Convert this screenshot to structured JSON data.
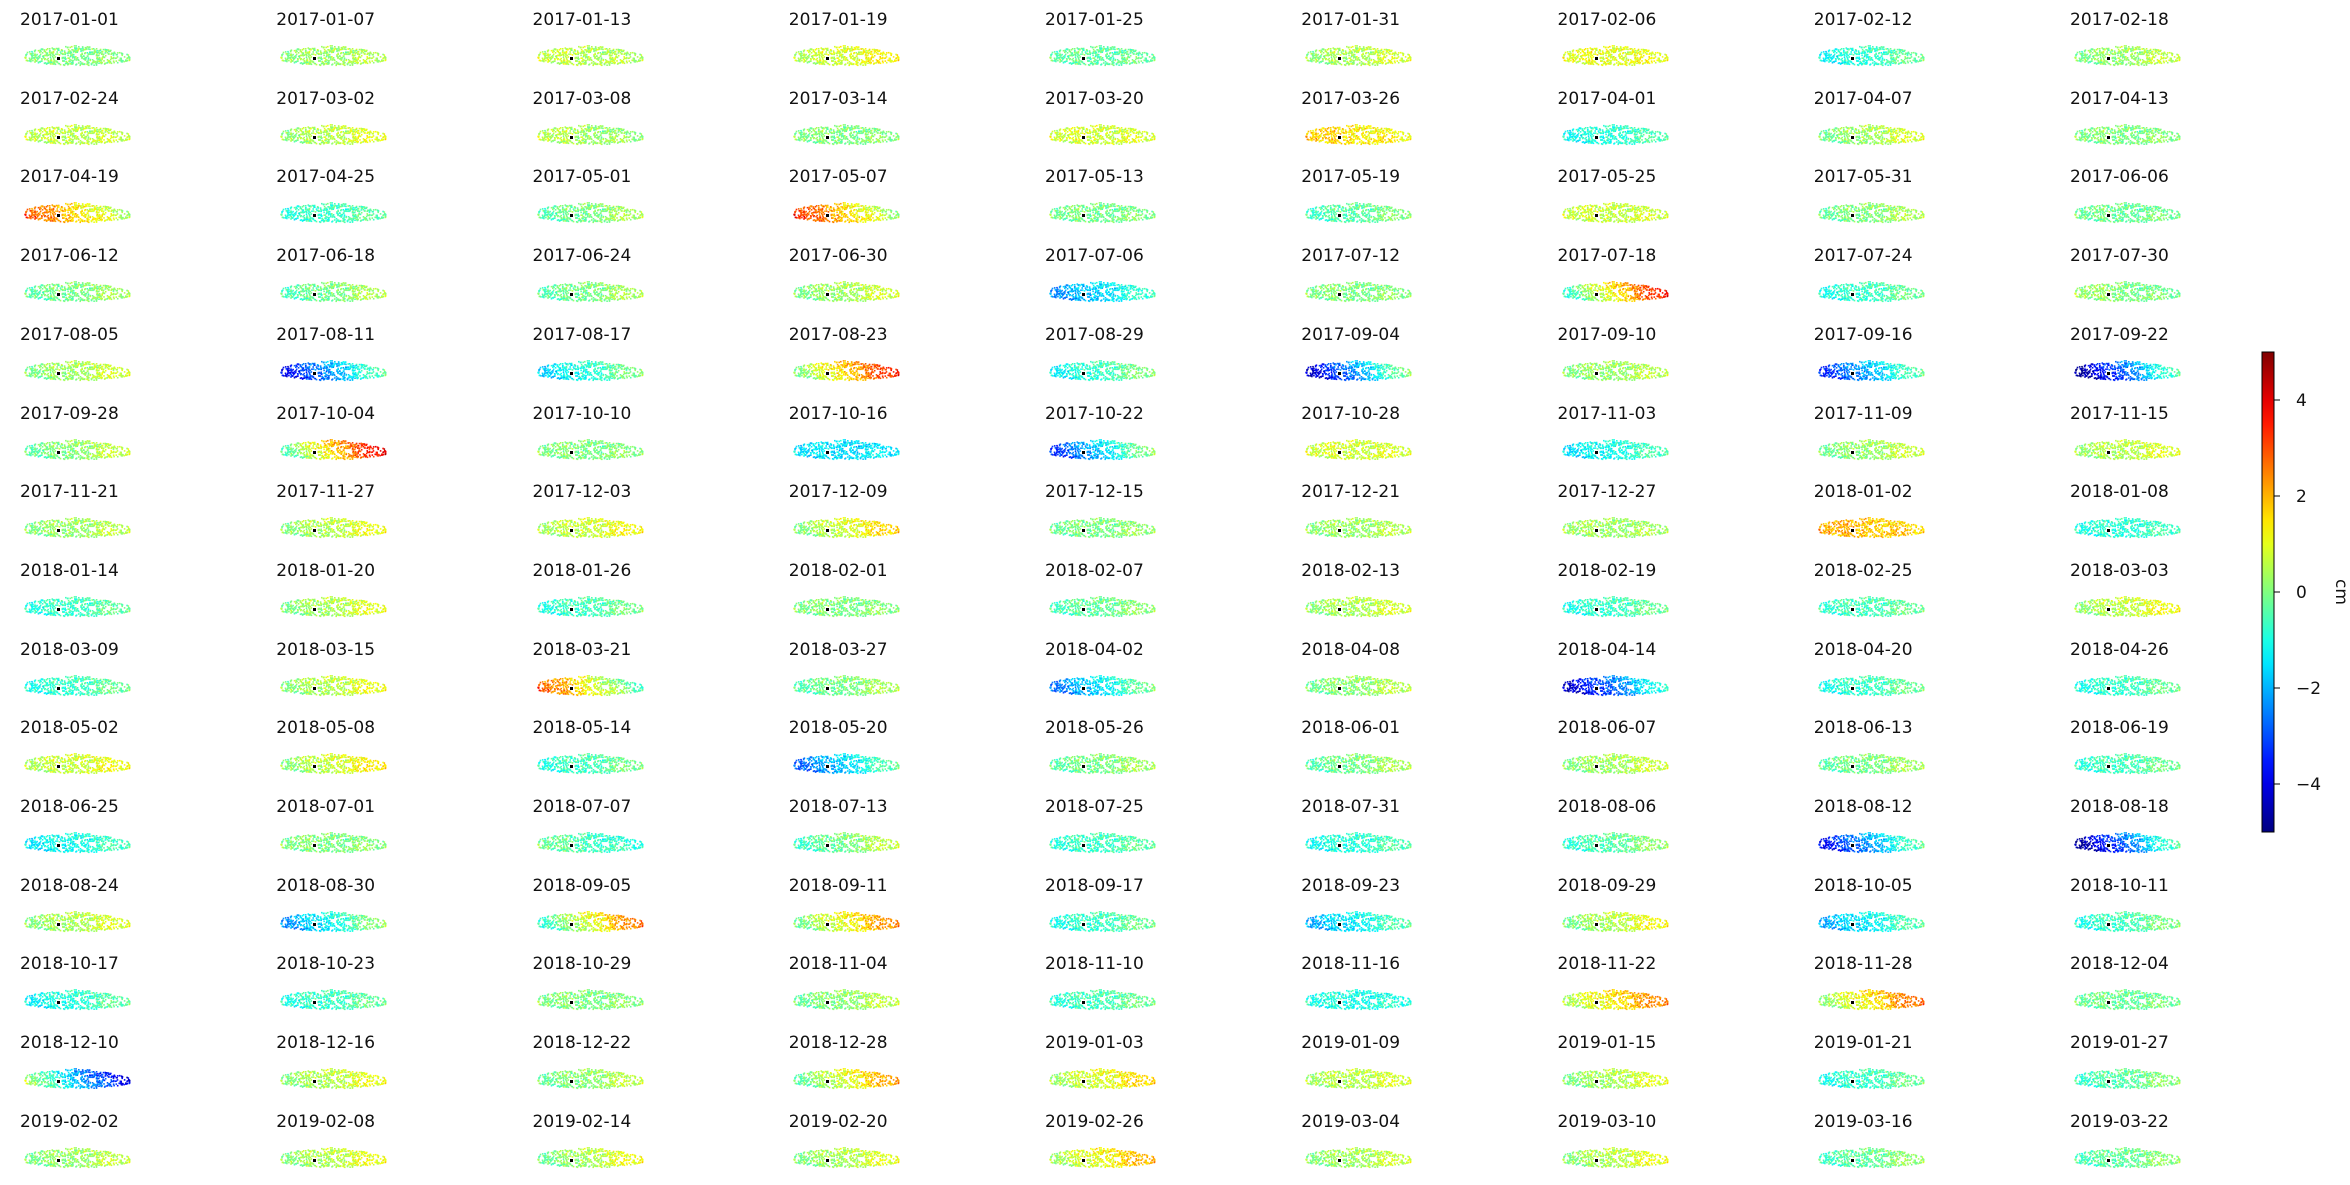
{
  "chart_data": {
    "type": "heatmap",
    "colormap": "jet",
    "unit_label": "cm",
    "value_range": [
      -5,
      5
    ],
    "colorbar_ticks": [
      -4,
      -2,
      0,
      2,
      4
    ],
    "colorbar_tick_labels": [
      "−4",
      "−2",
      "0",
      "2",
      "4"
    ],
    "reference_marker_color": "#000000",
    "columns": 9,
    "dates": [
      "2017-01-01",
      "2017-01-07",
      "2017-01-13",
      "2017-01-19",
      "2017-01-25",
      "2017-01-31",
      "2017-02-06",
      "2017-02-12",
      "2017-02-18",
      "2017-02-24",
      "2017-03-02",
      "2017-03-08",
      "2017-03-14",
      "2017-03-20",
      "2017-03-26",
      "2017-04-01",
      "2017-04-07",
      "2017-04-13",
      "2017-04-19",
      "2017-04-25",
      "2017-05-01",
      "2017-05-07",
      "2017-05-13",
      "2017-05-19",
      "2017-05-25",
      "2017-05-31",
      "2017-06-06",
      "2017-06-12",
      "2017-06-18",
      "2017-06-24",
      "2017-06-30",
      "2017-07-06",
      "2017-07-12",
      "2017-07-18",
      "2017-07-24",
      "2017-07-30",
      "2017-08-05",
      "2017-08-11",
      "2017-08-17",
      "2017-08-23",
      "2017-08-29",
      "2017-09-04",
      "2017-09-10",
      "2017-09-16",
      "2017-09-22",
      "2017-09-28",
      "2017-10-04",
      "2017-10-10",
      "2017-10-16",
      "2017-10-22",
      "2017-10-28",
      "2017-11-03",
      "2017-11-09",
      "2017-11-15",
      "2017-11-21",
      "2017-11-27",
      "2017-12-03",
      "2017-12-09",
      "2017-12-15",
      "2017-12-21",
      "2017-12-27",
      "2018-01-02",
      "2018-01-08",
      "2018-01-14",
      "2018-01-20",
      "2018-01-26",
      "2018-02-01",
      "2018-02-07",
      "2018-02-13",
      "2018-02-19",
      "2018-02-25",
      "2018-03-03",
      "2018-03-09",
      "2018-03-15",
      "2018-03-21",
      "2018-03-27",
      "2018-04-02",
      "2018-04-08",
      "2018-04-14",
      "2018-04-20",
      "2018-04-26",
      "2018-05-02",
      "2018-05-08",
      "2018-05-14",
      "2018-05-20",
      "2018-05-26",
      "2018-06-01",
      "2018-06-07",
      "2018-06-13",
      "2018-06-19",
      "2018-06-25",
      "2018-07-01",
      "2018-07-07",
      "2018-07-13",
      "2018-07-25",
      "2018-07-31",
      "2018-08-06",
      "2018-08-12",
      "2018-08-18",
      "2018-08-24",
      "2018-08-30",
      "2018-09-05",
      "2018-09-11",
      "2018-09-17",
      "2018-09-23",
      "2018-09-29",
      "2018-10-05",
      "2018-10-11",
      "2018-10-17",
      "2018-10-23",
      "2018-10-29",
      "2018-11-04",
      "2018-11-10",
      "2018-11-16",
      "2018-11-22",
      "2018-11-28",
      "2018-12-04",
      "2018-12-10",
      "2018-12-16",
      "2018-12-22",
      "2018-12-28",
      "2019-01-03",
      "2019-01-09",
      "2019-01-15",
      "2019-01-21",
      "2019-01-27",
      "2019-02-02",
      "2019-02-08",
      "2019-02-14",
      "2019-02-20",
      "2019-02-26",
      "2019-03-04",
      "2019-03-10",
      "2019-03-16",
      "2019-03-22"
    ],
    "mean_displacement_cm": [
      0.0,
      0.3,
      0.5,
      0.9,
      -0.3,
      0.5,
      1.0,
      -0.7,
      0.3,
      0.6,
      0.6,
      0.3,
      0.0,
      0.8,
      1.4,
      -0.8,
      0.4,
      0.0,
      1.5,
      -0.6,
      0.0,
      1.6,
      -0.1,
      -0.3,
      0.7,
      0.1,
      -0.2,
      0.0,
      0.0,
      0.0,
      0.4,
      -1.5,
      0.0,
      1.5,
      -0.6,
      0.0,
      0.4,
      -2.0,
      -0.8,
      1.8,
      -0.6,
      -2.0,
      0.3,
      -1.8,
      -2.5,
      0.2,
      1.8,
      0.0,
      -1.5,
      -1.5,
      0.8,
      -1.0,
      0.3,
      0.6,
      0.3,
      0.6,
      0.8,
      0.9,
      0.0,
      0.3,
      0.3,
      1.8,
      -0.8,
      -0.6,
      0.5,
      -0.5,
      0.0,
      -0.2,
      0.5,
      -0.6,
      -0.5,
      0.7,
      -0.6,
      0.6,
      1.0,
      0.0,
      -1.3,
      0.2,
      -2.5,
      -0.6,
      -0.6,
      0.8,
      0.8,
      -0.5,
      -1.5,
      0.0,
      0.0,
      0.4,
      0.0,
      -0.5,
      -1.0,
      0.0,
      -0.6,
      0.0,
      -0.6,
      -0.8,
      -0.3,
      -2.0,
      -2.5,
      0.5,
      -1.0,
      1.0,
      1.2,
      -0.6,
      -1.2,
      0.6,
      -1.2,
      -0.5,
      -0.8,
      -0.6,
      0.0,
      0.2,
      -0.5,
      -1.0,
      1.5,
      1.5,
      -0.2,
      -2.0,
      0.6,
      0.2,
      1.0,
      1.0,
      0.6,
      0.5,
      -0.6,
      -0.3,
      0.3,
      0.6,
      0.5,
      0.5,
      1.2,
      0.4,
      0.6,
      -0.2,
      -0.2
    ],
    "east_west_gradient_cm": [
      0.0,
      0.2,
      -0.2,
      0.5,
      0.0,
      0.4,
      0.0,
      0.6,
      0.4,
      0.0,
      0.5,
      -0.3,
      0.0,
      0.0,
      -0.4,
      0.4,
      0.6,
      0.0,
      -1.5,
      0.3,
      0.5,
      -1.8,
      0.0,
      0.4,
      0.0,
      0.4,
      0.0,
      0.4,
      0.6,
      0.5,
      0.5,
      1.0,
      0.0,
      2.5,
      0.5,
      -0.3,
      0.5,
      2.0,
      1.0,
      2.0,
      0.8,
      2.5,
      0.3,
      1.8,
      2.5,
      0.6,
      2.5,
      0.0,
      0.0,
      2.0,
      0.0,
      0.6,
      0.5,
      0.4,
      0.3,
      0.6,
      0.5,
      1.0,
      0.2,
      0.2,
      0.0,
      -0.3,
      0.2,
      0.4,
      0.6,
      0.5,
      0.0,
      0.4,
      0.4,
      0.5,
      0.3,
      0.6,
      0.5,
      0.6,
      -2.0,
      0.5,
      1.5,
      0.4,
      2.0,
      0.5,
      0.5,
      0.4,
      0.8,
      0.5,
      1.5,
      0.4,
      0.5,
      0.4,
      0.4,
      0.4,
      0.5,
      0.0,
      -0.5,
      0.8,
      0.3,
      0.4,
      0.6,
      2.0,
      2.5,
      0.5,
      1.5,
      2.0,
      1.5,
      0.5,
      1.0,
      0.8,
      1.0,
      0.6,
      0.6,
      0.4,
      0.0,
      0.5,
      0.4,
      0.0,
      1.2,
      1.5,
      0.0,
      -2.5,
      0.6,
      0.5,
      1.5,
      0.8,
      0.3,
      0.6,
      0.5,
      0.5,
      0.4,
      0.6,
      0.8,
      0.6,
      1.0,
      0.4,
      0.6,
      0.5,
      0.4
    ],
    "noise_cm": 0.6
  }
}
